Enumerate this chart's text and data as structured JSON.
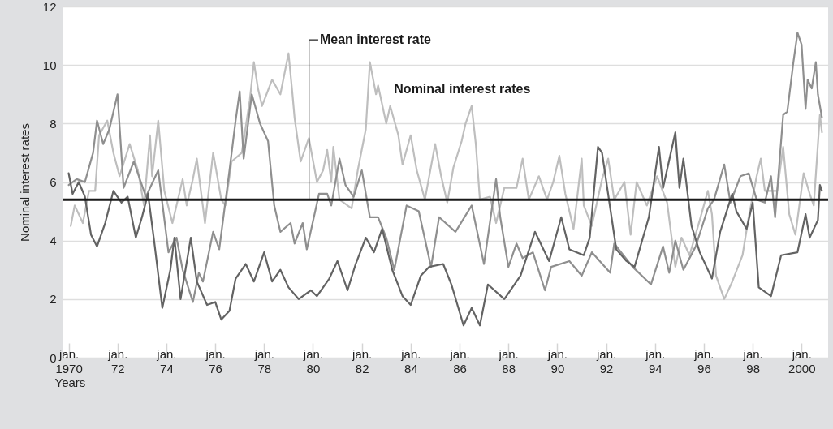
{
  "chart_data": {
    "type": "line",
    "xlabel": "Years",
    "ylabel": "Nominal interest rates",
    "xlim": [
      "1969-10",
      "2001-02"
    ],
    "ylim": [
      0,
      12
    ],
    "yticks": [
      0,
      2,
      4,
      6,
      8,
      10,
      12
    ],
    "xticks": [
      {
        "value": "1970-01",
        "label": "jan. 1970"
      },
      {
        "value": "1972-01",
        "label": "jan. 72"
      },
      {
        "value": "1974-01",
        "label": "jan. 74"
      },
      {
        "value": "1976-01",
        "label": "jan. 76"
      },
      {
        "value": "1978-01",
        "label": "jan. 78"
      },
      {
        "value": "1980-01",
        "label": "jan. 80"
      },
      {
        "value": "1982-01",
        "label": "jan. 82"
      },
      {
        "value": "1984-01",
        "label": "jan. 84"
      },
      {
        "value": "1986-01",
        "label": "jan. 86"
      },
      {
        "value": "1988-01",
        "label": "jan. 88"
      },
      {
        "value": "1990-01",
        "label": "jan. 90"
      },
      {
        "value": "1992-01",
        "label": "jan. 92"
      },
      {
        "value": "1994-01",
        "label": "jan. 94"
      },
      {
        "value": "1996-01",
        "label": "jan. 96"
      },
      {
        "value": "1998-01",
        "label": "jan. 98"
      },
      {
        "value": "2000-01",
        "label": "jan. 2000"
      }
    ],
    "grid": "y",
    "line_style": "solid",
    "ref_lines": [
      {
        "axis": "y",
        "value": 5.4,
        "label": "Mean interest rate",
        "color": "#1a1a1a"
      }
    ],
    "annotations": [
      "Nominal interest rates"
    ],
    "series": [
      {
        "color": "#bebebe",
        "x": [
          "1970-02",
          "1970-04",
          "1970-08",
          "1970-11",
          "1971-02",
          "1971-04",
          "1971-08",
          "1971-11",
          "1972-02",
          "1972-07",
          "1972-11",
          "1973-02",
          "1973-05",
          "1973-06",
          "1973-09",
          "1973-12",
          "1974-04",
          "1974-09",
          "1974-11",
          "1975-02",
          "1975-04",
          "1975-08",
          "1975-12",
          "1976-04",
          "1976-06",
          "1976-09",
          "1977-02",
          "1977-06",
          "1977-08",
          "1977-10",
          "1977-12",
          "1978-05",
          "1978-09",
          "1979-01",
          "1979-03",
          "1979-04",
          "1979-07",
          "1979-11",
          "1980-03",
          "1980-06",
          "1980-08",
          "1980-10",
          "1980-11",
          "1981-02",
          "1981-08",
          "1981-11",
          "1982-03",
          "1982-05",
          "1982-08",
          "1982-09",
          "1983-01",
          "1983-03",
          "1983-07",
          "1983-09",
          "1984-01",
          "1984-04",
          "1984-08",
          "1985-01",
          "1985-04",
          "1985-07",
          "1985-10",
          "1986-02",
          "1986-04",
          "1986-07",
          "1986-09",
          "1986-11",
          "1987-04",
          "1987-07",
          "1987-11",
          "1988-05",
          "1988-08",
          "1988-11",
          "1989-04",
          "1989-08",
          "1989-11",
          "1990-02",
          "1990-05",
          "1990-09",
          "1991-01",
          "1991-02",
          "1991-06",
          "1991-11",
          "1992-02",
          "1992-05",
          "1992-10",
          "1993-01",
          "1993-04",
          "1993-09",
          "1994-02",
          "1994-07",
          "1994-11",
          "1995-02",
          "1995-06",
          "1995-11",
          "1996-03",
          "1996-05",
          "1996-07",
          "1996-11",
          "1997-03",
          "1997-08",
          "1997-11",
          "1998-03",
          "1998-05",
          "1998-07",
          "1999-01",
          "1999-04",
          "1999-07",
          "1999-10",
          "2000-02",
          "2000-05",
          "2000-07",
          "2000-10",
          "2000-11"
        ],
        "values": [
          4.5,
          5.2,
          4.6,
          5.7,
          5.7,
          7.6,
          8.1,
          7.0,
          6.2,
          7.3,
          6.4,
          5.2,
          7.6,
          6.2,
          8.1,
          5.7,
          4.6,
          6.1,
          5.2,
          6.1,
          6.8,
          4.6,
          7.0,
          5.4,
          5.2,
          6.7,
          7.0,
          8.8,
          10.1,
          9.2,
          8.6,
          9.5,
          9.0,
          10.4,
          9.0,
          8.2,
          6.7,
          7.5,
          6.0,
          6.4,
          7.1,
          6.0,
          7.2,
          5.4,
          5.1,
          6.4,
          7.8,
          10.1,
          9.0,
          9.3,
          8.0,
          8.6,
          7.6,
          6.6,
          7.6,
          6.4,
          5.4,
          7.3,
          6.2,
          5.3,
          6.5,
          7.4,
          8.0,
          8.6,
          7.3,
          5.4,
          5.5,
          4.6,
          5.8,
          5.8,
          6.8,
          5.4,
          6.2,
          5.4,
          6.0,
          6.9,
          5.6,
          4.4,
          6.8,
          5.2,
          4.5,
          6.1,
          6.8,
          5.4,
          6.0,
          4.2,
          6.0,
          5.2,
          6.2,
          5.3,
          3.1,
          4.1,
          3.5,
          4.7,
          5.7,
          4.9,
          2.8,
          2.0,
          2.6,
          3.5,
          4.8,
          6.2,
          6.8,
          5.7,
          5.7,
          7.2,
          4.9,
          4.2,
          6.3,
          5.6,
          5.2,
          8.3,
          7.7
        ]
      },
      {
        "color": "#8f8f8f",
        "x": [
          "1970-01",
          "1970-05",
          "1970-09",
          "1971-01",
          "1971-03",
          "1971-06",
          "1971-09",
          "1972-01",
          "1972-04",
          "1972-09",
          "1973-03",
          "1973-09",
          "1974-02",
          "1974-06",
          "1974-09",
          "1975-02",
          "1975-05",
          "1975-07",
          "1975-12",
          "1976-03",
          "1976-08",
          "1976-11",
          "1977-01",
          "1977-03",
          "1977-05",
          "1977-07",
          "1977-11",
          "1978-03",
          "1978-06",
          "1978-09",
          "1979-02",
          "1979-04",
          "1979-08",
          "1979-10",
          "1980-04",
          "1980-08",
          "1980-10",
          "1981-02",
          "1981-05",
          "1981-09",
          "1982-01",
          "1982-05",
          "1982-09",
          "1983-01",
          "1983-05",
          "1983-11",
          "1984-05",
          "1984-11",
          "1985-03",
          "1985-11",
          "1986-07",
          "1987-01",
          "1987-07",
          "1987-09",
          "1988-01",
          "1988-05",
          "1988-08",
          "1989-01",
          "1989-07",
          "1989-10",
          "1990-07",
          "1991-01",
          "1991-06",
          "1992-03",
          "1992-05",
          "1993-02",
          "1993-11",
          "1994-05",
          "1994-08",
          "1994-11",
          "1995-03",
          "1995-09",
          "1996-03",
          "1996-06",
          "1996-11",
          "1997-02",
          "1997-07",
          "1997-11",
          "1998-03",
          "1998-07",
          "1998-10",
          "1998-12",
          "1999-04",
          "1999-06",
          "1999-09",
          "1999-11",
          "2000-01",
          "2000-03",
          "2000-04",
          "2000-06",
          "2000-08",
          "2000-09",
          "2000-11"
        ],
        "values": [
          5.9,
          6.1,
          6.0,
          7.0,
          8.1,
          7.3,
          7.8,
          9.0,
          5.8,
          6.7,
          5.5,
          6.4,
          3.6,
          4.1,
          3.0,
          1.9,
          2.9,
          2.6,
          4.3,
          3.7,
          6.4,
          8.1,
          9.1,
          6.8,
          7.9,
          9.0,
          8.0,
          7.4,
          5.2,
          4.3,
          4.6,
          3.9,
          4.6,
          3.7,
          5.6,
          5.6,
          5.2,
          6.8,
          5.9,
          5.5,
          6.4,
          4.8,
          4.8,
          4.1,
          3.0,
          5.2,
          5.0,
          3.1,
          4.8,
          4.3,
          5.2,
          3.2,
          6.1,
          4.8,
          3.1,
          3.9,
          3.4,
          3.6,
          2.3,
          3.1,
          3.3,
          2.8,
          3.6,
          2.9,
          3.9,
          3.1,
          2.5,
          3.8,
          2.9,
          4.0,
          3.0,
          3.8,
          5.1,
          5.4,
          6.6,
          5.3,
          6.2,
          6.3,
          5.4,
          5.3,
          6.2,
          4.8,
          8.3,
          8.4,
          10.1,
          11.1,
          10.7,
          8.5,
          9.5,
          9.2,
          10.1,
          9.0,
          8.2
        ]
      },
      {
        "color": "#636363",
        "x": [
          "1970-01",
          "1970-03",
          "1970-06",
          "1970-09",
          "1970-12",
          "1971-03",
          "1971-07",
          "1971-11",
          "1972-03",
          "1972-06",
          "1972-10",
          "1973-01",
          "1973-04",
          "1973-07",
          "1973-11",
          "1974-03",
          "1974-05",
          "1974-08",
          "1975-01",
          "1975-04",
          "1975-09",
          "1976-01",
          "1976-04",
          "1976-08",
          "1976-11",
          "1977-04",
          "1977-08",
          "1978-01",
          "1978-05",
          "1978-09",
          "1979-01",
          "1979-06",
          "1979-12",
          "1980-03",
          "1980-09",
          "1981-01",
          "1981-06",
          "1981-10",
          "1982-03",
          "1982-07",
          "1982-11",
          "1983-04",
          "1983-09",
          "1984-01",
          "1984-06",
          "1984-10",
          "1985-05",
          "1985-09",
          "1986-03",
          "1986-07",
          "1986-11",
          "1987-03",
          "1987-11",
          "1988-07",
          "1989-02",
          "1989-09",
          "1990-03",
          "1990-07",
          "1991-02",
          "1991-05",
          "1991-09",
          "1991-11",
          "1992-06",
          "1992-11",
          "1993-03",
          "1993-10",
          "1994-03",
          "1994-05",
          "1994-11",
          "1995-01",
          "1995-03",
          "1995-07",
          "1995-11",
          "1996-05",
          "1996-09",
          "1997-03",
          "1997-05",
          "1997-10",
          "1998-01",
          "1998-04",
          "1998-10",
          "1999-03",
          "1999-11",
          "2000-03",
          "2000-05",
          "2000-09",
          "2000-10",
          "2000-11"
        ],
        "values": [
          6.3,
          5.6,
          6.0,
          5.5,
          4.2,
          3.8,
          4.6,
          5.7,
          5.3,
          5.5,
          4.1,
          4.8,
          5.6,
          4.0,
          1.7,
          3.0,
          4.1,
          2.0,
          4.1,
          2.6,
          1.8,
          1.9,
          1.3,
          1.6,
          2.7,
          3.2,
          2.6,
          3.6,
          2.6,
          3.0,
          2.4,
          2.0,
          2.3,
          2.1,
          2.7,
          3.3,
          2.3,
          3.2,
          4.1,
          3.6,
          4.4,
          3.0,
          2.1,
          1.8,
          2.8,
          3.1,
          3.2,
          2.5,
          1.1,
          1.7,
          1.1,
          2.5,
          2.0,
          2.8,
          4.3,
          3.3,
          4.8,
          3.7,
          3.5,
          4.1,
          7.2,
          7.0,
          3.7,
          3.3,
          3.1,
          4.8,
          7.2,
          5.8,
          7.7,
          5.8,
          6.8,
          4.5,
          3.6,
          2.7,
          4.3,
          5.6,
          5.0,
          4.4,
          5.3,
          2.4,
          2.1,
          3.5,
          3.6,
          4.9,
          4.1,
          4.7,
          5.9,
          5.7
        ]
      }
    ]
  }
}
